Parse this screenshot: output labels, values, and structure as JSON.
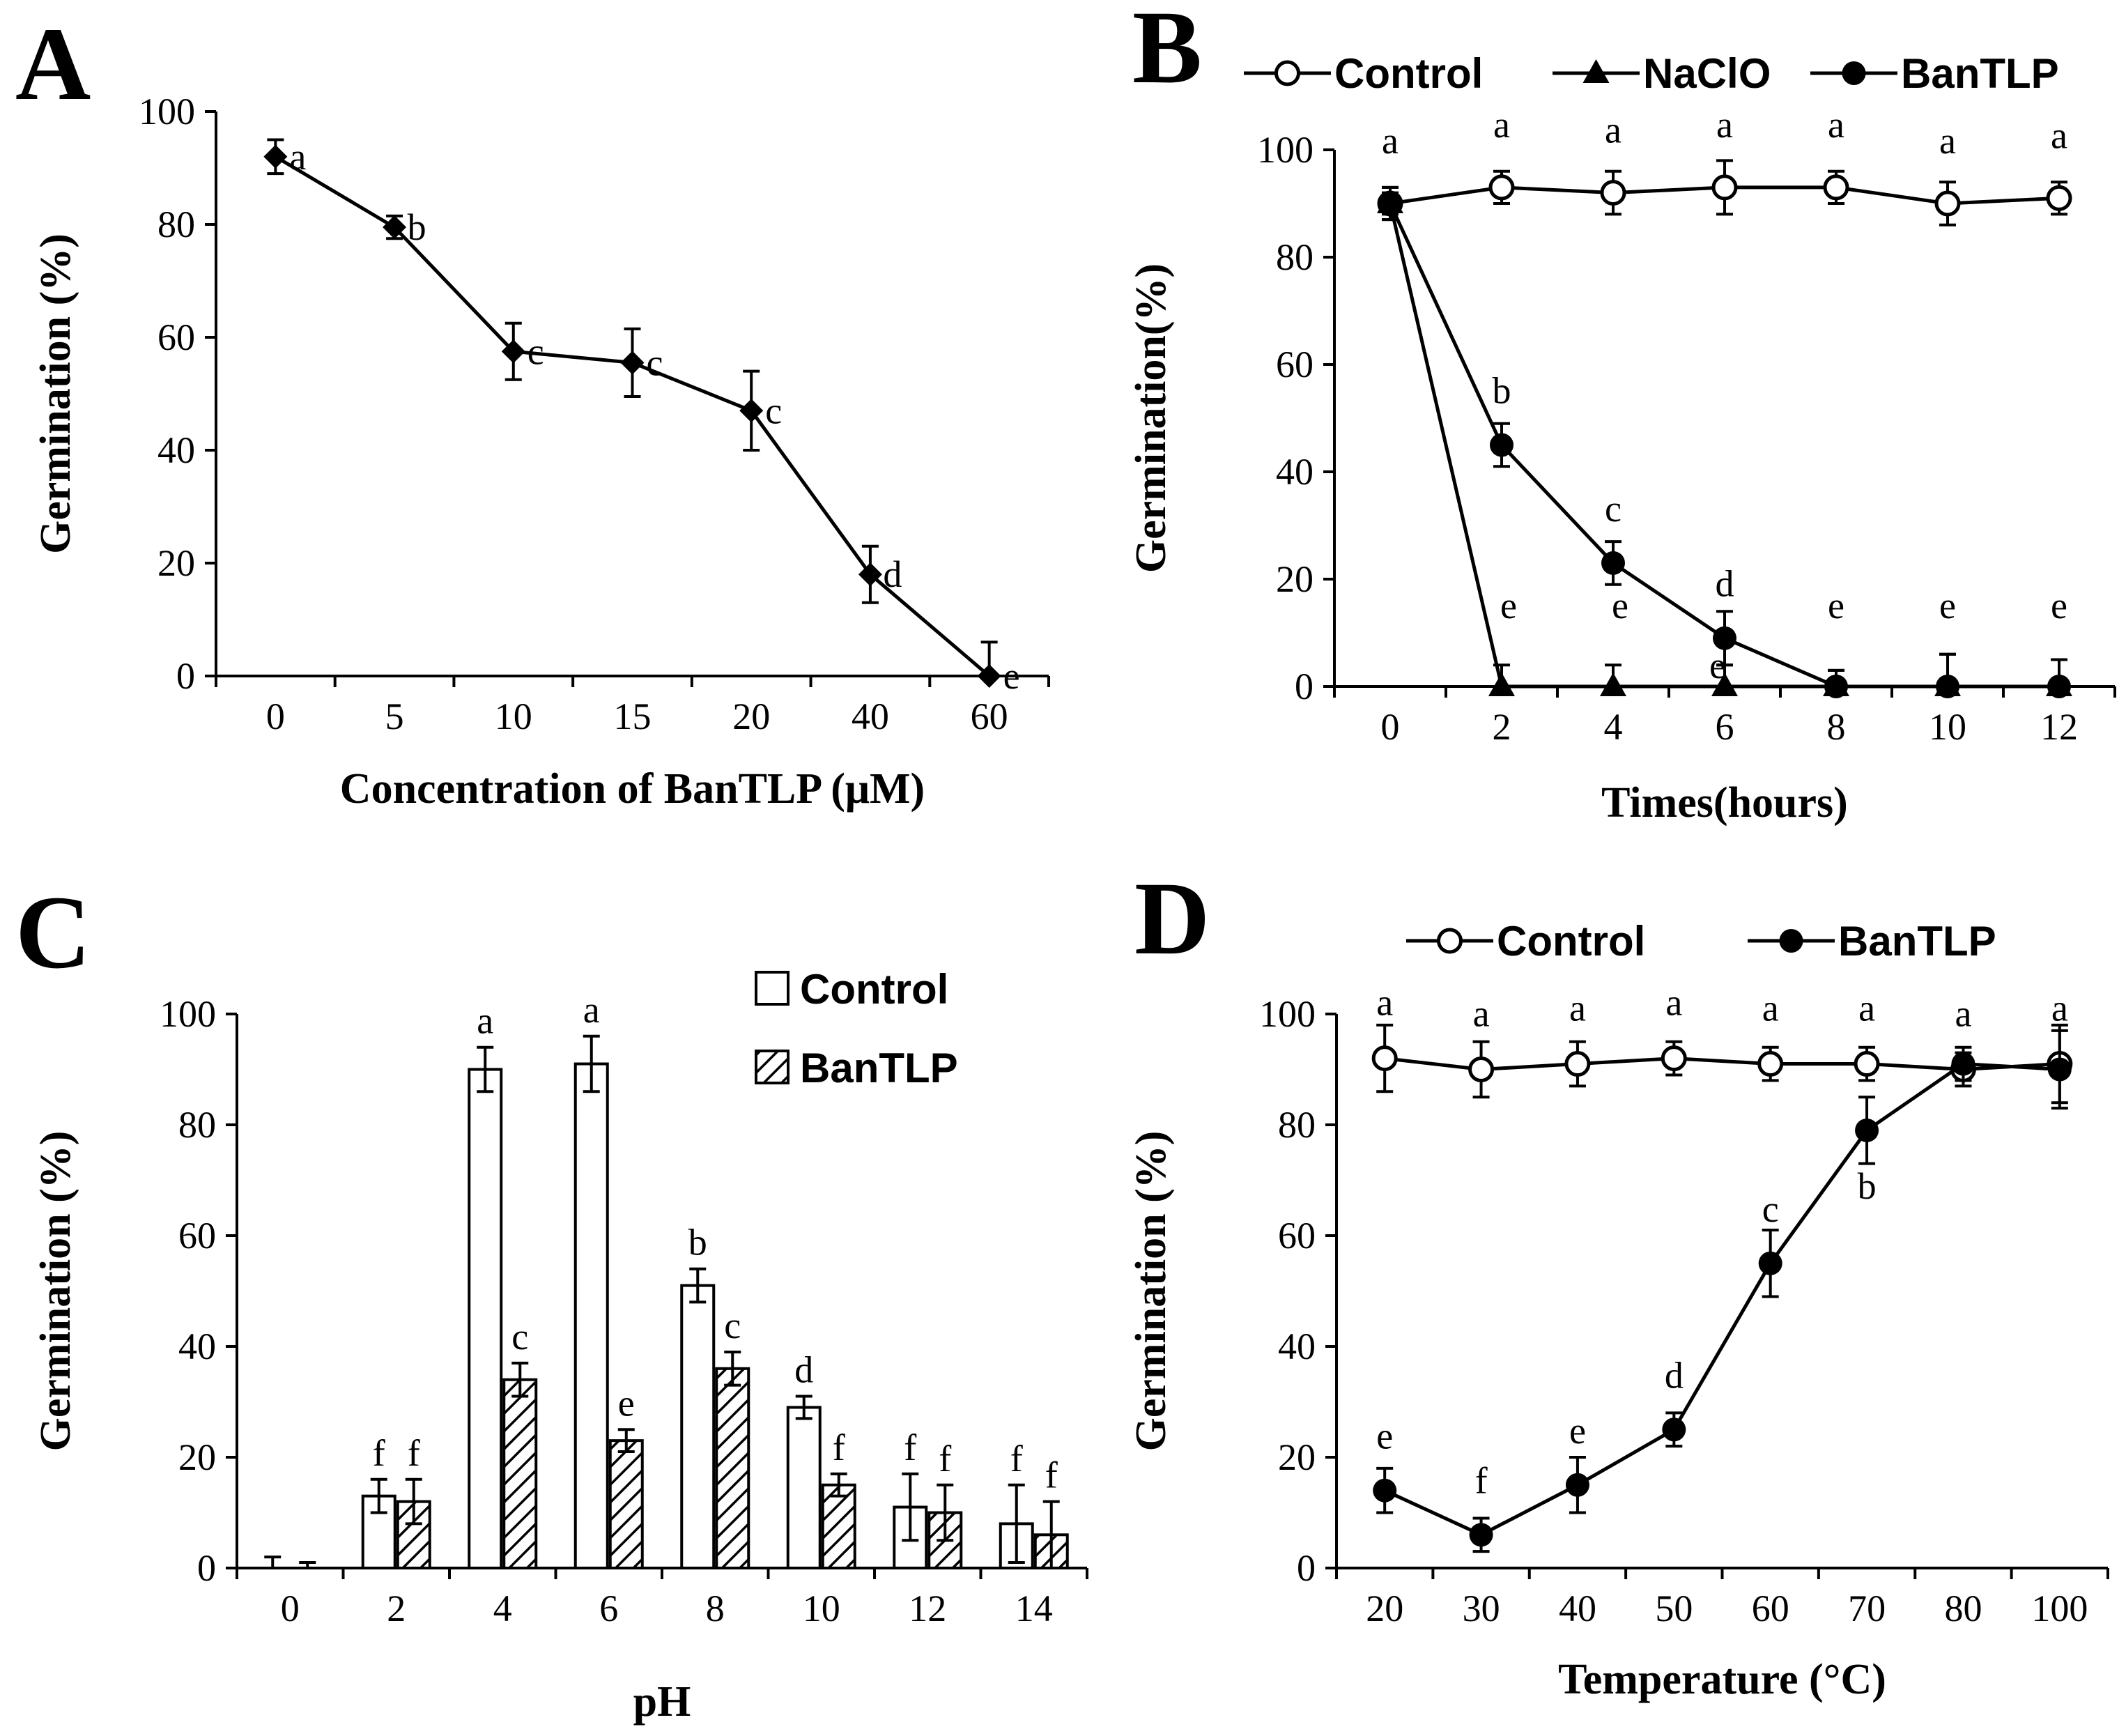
{
  "figure": {
    "colors": {
      "ink": "#000000",
      "background": "#ffffff"
    }
  },
  "chart_data": [
    {
      "panel": "A",
      "type": "line",
      "xlabel": "Concentration of BanTLP (μM)",
      "ylabel": "Germination (%)",
      "categories": [
        "0",
        "5",
        "10",
        "15",
        "20",
        "40",
        "60"
      ],
      "ylim": [
        0,
        100
      ],
      "yticks": [
        0,
        20,
        40,
        60,
        80,
        100
      ],
      "legend": "none",
      "series": [
        {
          "name": "BanTLP",
          "marker": "diamond-filled",
          "values": [
            92,
            79.5,
            57.5,
            55.5,
            47,
            18,
            0
          ],
          "errors": [
            3,
            2,
            5,
            6,
            7,
            5,
            6
          ],
          "letters": [
            "a",
            "b",
            "c",
            "c",
            "c",
            "d",
            "e"
          ]
        }
      ]
    },
    {
      "panel": "B",
      "type": "line",
      "xlabel": "Times(hours)",
      "ylabel": "Germination(%)",
      "categories": [
        "0",
        "2",
        "4",
        "6",
        "8",
        "10",
        "12"
      ],
      "ylim": [
        0,
        100
      ],
      "yticks": [
        0,
        20,
        40,
        60,
        80,
        100
      ],
      "legend": "top",
      "series": [
        {
          "name": "Control",
          "marker": "circle-open",
          "values": [
            90,
            93,
            92,
            93,
            93,
            90,
            91
          ],
          "errors": [
            3,
            3,
            4,
            5,
            3,
            4,
            3
          ],
          "letters": [
            "a",
            "a",
            "a",
            "a",
            "a",
            "a",
            "a"
          ]
        },
        {
          "name": "NaClO",
          "marker": "triangle-filled",
          "values": [
            90,
            0,
            0,
            0,
            0,
            0,
            0
          ],
          "errors": [
            3,
            4,
            4,
            4,
            3,
            6,
            5
          ],
          "letters": [
            "",
            "e",
            "e",
            "e",
            "",
            "",
            ""
          ]
        },
        {
          "name": "BanTLP",
          "marker": "circle-filled",
          "values": [
            90,
            45,
            23,
            9,
            0,
            0,
            0
          ],
          "errors": [
            2,
            4,
            4,
            5,
            3,
            6,
            5
          ],
          "letters": [
            "",
            "b",
            "c",
            "d",
            "e",
            "e",
            "e"
          ]
        }
      ]
    },
    {
      "panel": "C",
      "type": "bar",
      "xlabel": "pH",
      "ylabel": "Germination (%)",
      "categories": [
        "0",
        "2",
        "4",
        "6",
        "8",
        "10",
        "12",
        "14"
      ],
      "ylim": [
        0,
        100
      ],
      "yticks": [
        0,
        20,
        40,
        60,
        80,
        100
      ],
      "legend": "top-right",
      "series": [
        {
          "name": "Control",
          "fill": "open",
          "values": [
            0,
            13,
            90,
            91,
            51,
            29,
            11,
            8
          ],
          "errors": [
            2,
            3,
            4,
            5,
            3,
            2,
            6,
            7
          ],
          "letters": [
            "",
            "f",
            "a",
            "a",
            "b",
            "d",
            "f",
            "f"
          ]
        },
        {
          "name": "BanTLP",
          "fill": "hatched",
          "values": [
            0,
            12,
            34,
            23,
            36,
            15,
            10,
            6
          ],
          "errors": [
            1,
            4,
            3,
            2,
            3,
            2,
            5,
            6
          ],
          "letters": [
            "",
            "f",
            "c",
            "e",
            "c",
            "f",
            "f",
            "f"
          ]
        }
      ]
    },
    {
      "panel": "D",
      "type": "line",
      "xlabel": "Temperature (°C)",
      "ylabel": "Germination (%)",
      "categories": [
        "20",
        "30",
        "40",
        "50",
        "60",
        "70",
        "80",
        "100"
      ],
      "ylim": [
        0,
        100
      ],
      "yticks": [
        0,
        20,
        40,
        60,
        80,
        100
      ],
      "legend": "top",
      "series": [
        {
          "name": "Control",
          "marker": "circle-open",
          "values": [
            92,
            90,
            91,
            92,
            91,
            91,
            90,
            91
          ],
          "errors": [
            6,
            5,
            4,
            3,
            3,
            3,
            3,
            7
          ],
          "letters": [
            "a",
            "a",
            "a",
            "a",
            "a",
            "a",
            "a",
            "a"
          ]
        },
        {
          "name": "BanTLP",
          "marker": "circle-filled",
          "values": [
            14,
            6,
            15,
            25,
            55,
            79,
            91,
            90
          ],
          "errors": [
            4,
            3,
            5,
            3,
            6,
            6,
            3,
            7
          ],
          "letters": [
            "e",
            "f",
            "e",
            "d",
            "c",
            "b",
            "",
            ""
          ]
        }
      ]
    }
  ]
}
